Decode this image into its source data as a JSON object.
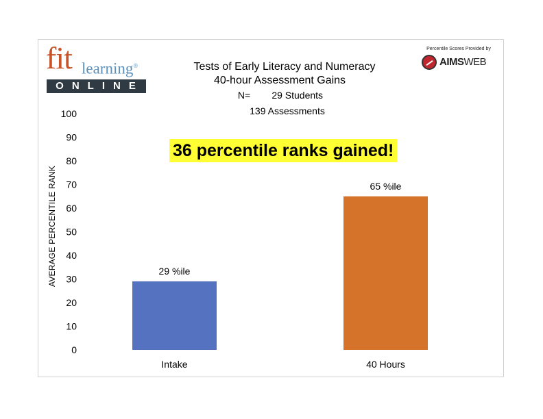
{
  "brand": {
    "logo_fit": "fit",
    "logo_learning": "learning",
    "logo_reg": "®",
    "logo_online": "ONLINE",
    "provider_caption": "Percentile Scores Provided by",
    "provider_name_bold": "AIMS",
    "provider_name_light": "WEB"
  },
  "header": {
    "title_line1": "Tests of Early Literacy and Numeracy",
    "title_line2": "40-hour Assessment Gains",
    "n_line": "N=        29 Students",
    "assessments_line": "139 Assessments"
  },
  "callout": "36 percentile ranks gained!",
  "chart_data": {
    "type": "bar",
    "categories": [
      "Intake",
      "40 Hours"
    ],
    "values": [
      29,
      65
    ],
    "data_labels": [
      "29 %ile",
      "65 %ile"
    ],
    "colors": [
      "#5472c0",
      "#d6732a"
    ],
    "title": "Tests of Early Literacy and Numeracy",
    "xlabel": "",
    "ylabel": "AVERAGE PERCENTILE RANK",
    "ylim": [
      0,
      100
    ],
    "yticks": [
      0,
      10,
      20,
      30,
      40,
      50,
      60,
      70,
      80,
      90,
      100
    ],
    "grid": false,
    "legend": "none"
  }
}
